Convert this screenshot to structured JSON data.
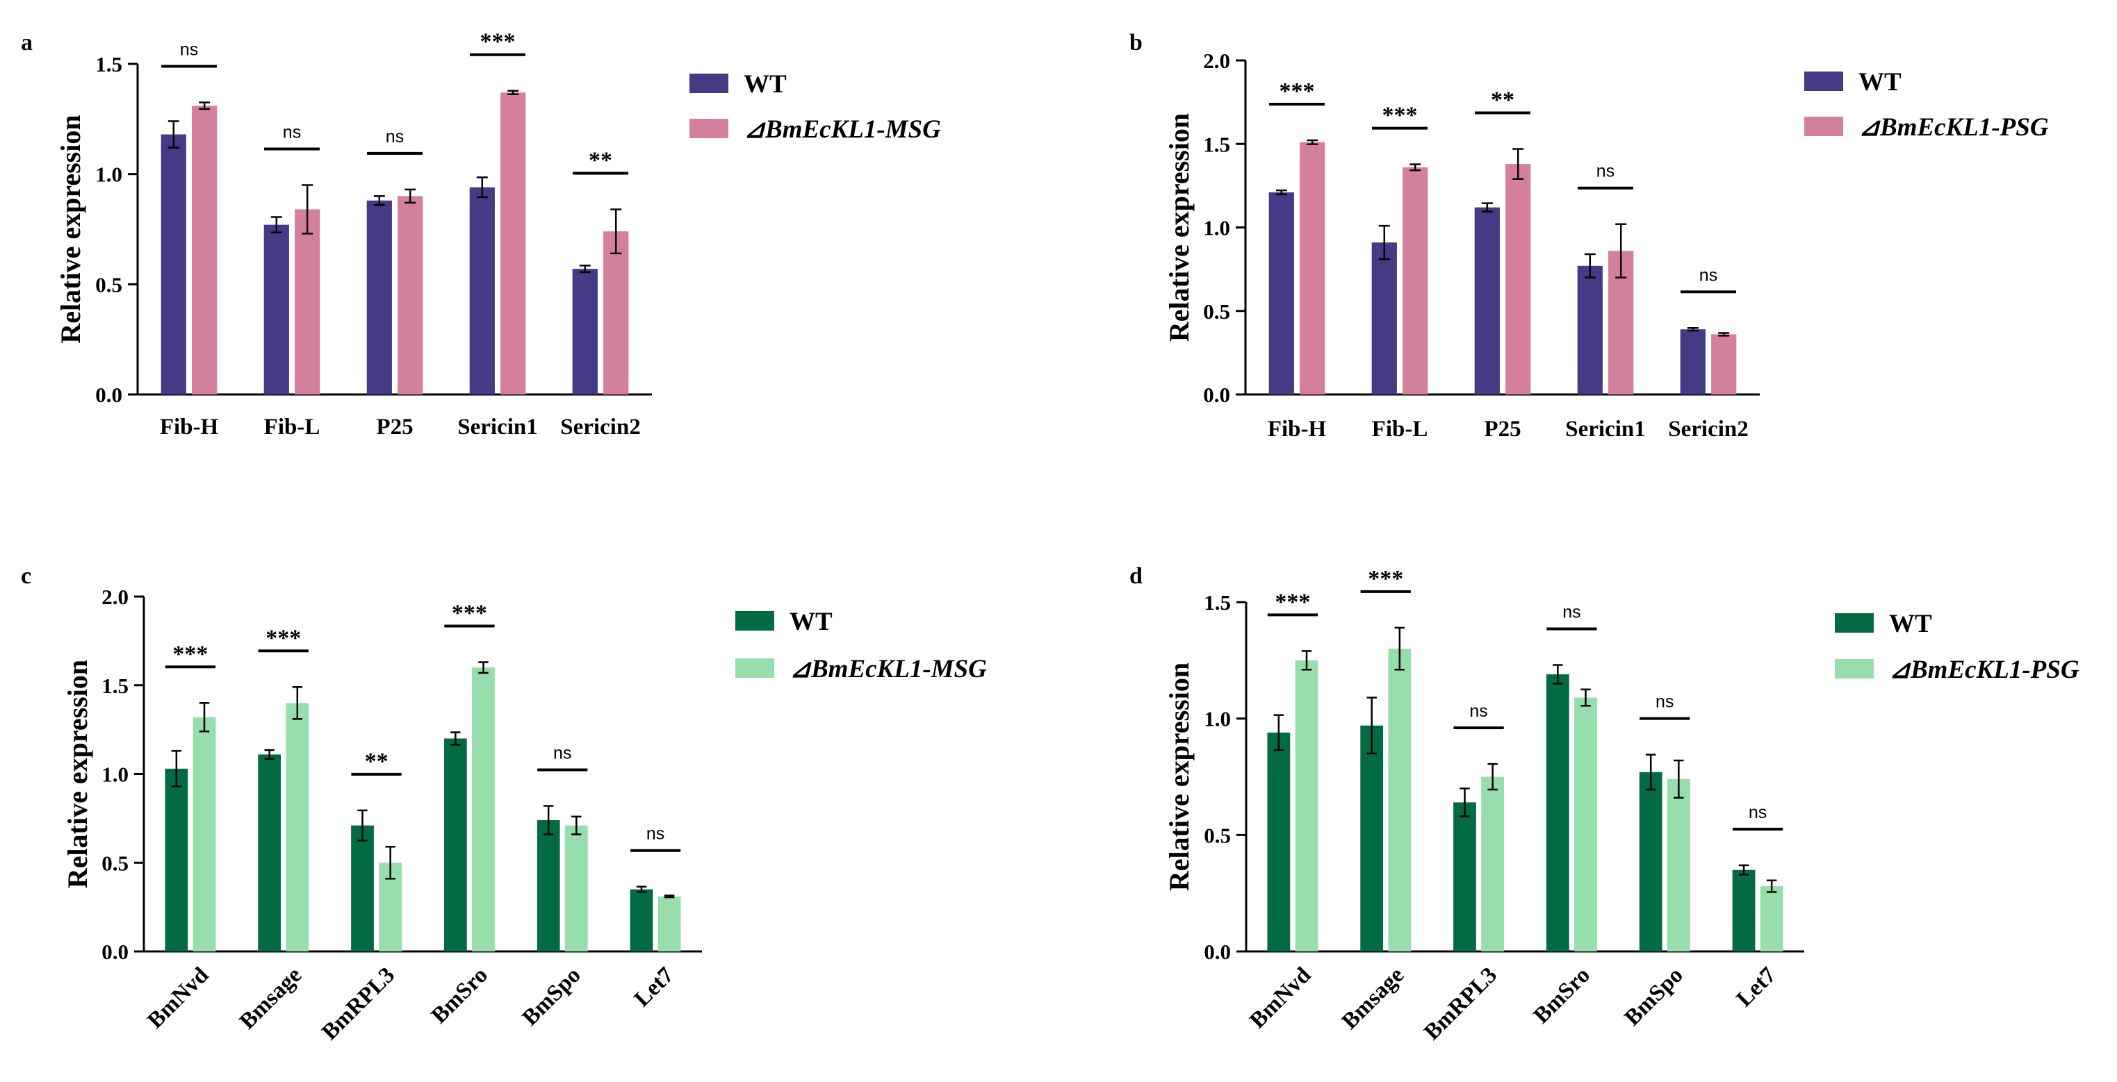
{
  "chart_data": [
    {
      "panel": "a",
      "type": "bar",
      "ylabel": "Relative expression",
      "ylim": [
        0,
        1.5
      ],
      "yticks": [
        "0.0",
        "0.5",
        "1.0",
        "1.5"
      ],
      "categories": [
        "Fib-H",
        "Fib-L",
        "P25",
        "Sericin1",
        "Sericin2"
      ],
      "series": [
        {
          "name": "WT",
          "color": "#453a85",
          "values": [
            1.18,
            0.77,
            0.88,
            0.94,
            0.57
          ],
          "errors": [
            0.06,
            0.035,
            0.02,
            0.045,
            0.015
          ]
        },
        {
          "name": "⊿BmEcKL1-MSG",
          "color": "#d57f9e",
          "values": [
            1.31,
            0.84,
            0.9,
            1.37,
            0.74
          ],
          "errors": [
            0.015,
            0.11,
            0.03,
            0.008,
            0.1
          ]
        }
      ],
      "significance": [
        "ns",
        "ns",
        "ns",
        "***",
        "**"
      ],
      "legend": "right"
    },
    {
      "panel": "b",
      "type": "bar",
      "ylabel": "Relative expression",
      "ylim": [
        0,
        2.0
      ],
      "yticks": [
        "0.0",
        "0.5",
        "1.0",
        "1.5",
        "2.0"
      ],
      "categories": [
        "Fib-H",
        "Fib-L",
        "P25",
        "Sericin1",
        "Sericin2"
      ],
      "series": [
        {
          "name": "WT",
          "color": "#453a85",
          "values": [
            1.21,
            0.91,
            1.12,
            0.77,
            0.39
          ],
          "errors": [
            0.012,
            0.1,
            0.025,
            0.07,
            0.008
          ]
        },
        {
          "name": "⊿BmEcKL1-PSG",
          "color": "#d57f9e",
          "values": [
            1.51,
            1.36,
            1.38,
            0.86,
            0.36
          ],
          "errors": [
            0.012,
            0.018,
            0.09,
            0.16,
            0.008
          ]
        }
      ],
      "significance": [
        "***",
        "***",
        "**",
        "ns",
        "ns"
      ],
      "legend": "right"
    },
    {
      "panel": "c",
      "type": "bar",
      "ylabel": "Relative expression",
      "ylim": [
        0,
        2.0
      ],
      "yticks": [
        "0.0",
        "0.5",
        "1.0",
        "1.5",
        "2.0"
      ],
      "categories": [
        "BmNvd",
        "Bmsage",
        "BmRPL3",
        "BmSro",
        "BmSpo",
        "Let7"
      ],
      "series": [
        {
          "name": "WT",
          "color": "#036b43",
          "values": [
            1.03,
            1.11,
            0.71,
            1.2,
            0.74,
            0.35
          ],
          "errors": [
            0.1,
            0.025,
            0.085,
            0.035,
            0.08,
            0.015
          ]
        },
        {
          "name": "⊿BmEcKL1-MSG",
          "color": "#97deac",
          "values": [
            1.32,
            1.4,
            0.5,
            1.6,
            0.71,
            0.31
          ],
          "errors": [
            0.08,
            0.09,
            0.09,
            0.03,
            0.05,
            0.005
          ]
        }
      ],
      "significance": [
        "***",
        "***",
        "**",
        "***",
        "ns",
        "ns"
      ],
      "legend": "right"
    },
    {
      "panel": "d",
      "type": "bar",
      "ylabel": "Relative expression",
      "ylim": [
        0,
        1.5
      ],
      "yticks": [
        "0.0",
        "0.5",
        "1.0",
        "1.5"
      ],
      "categories": [
        "BmNvd",
        "Bmsage",
        "BmRPL3",
        "BmSro",
        "BmSpo",
        "Let7"
      ],
      "series": [
        {
          "name": "WT",
          "color": "#036b43",
          "values": [
            0.94,
            0.97,
            0.64,
            1.19,
            0.77,
            0.35
          ],
          "errors": [
            0.075,
            0.12,
            0.06,
            0.04,
            0.075,
            0.02
          ]
        },
        {
          "name": "⊿BmEcKL1-PSG",
          "color": "#97deac",
          "values": [
            1.25,
            1.3,
            0.75,
            1.09,
            0.74,
            0.28
          ],
          "errors": [
            0.04,
            0.09,
            0.055,
            0.035,
            0.08,
            0.025
          ]
        }
      ],
      "significance": [
        "***",
        "***",
        "ns",
        "ns",
        "ns",
        "ns"
      ],
      "legend": "right"
    }
  ]
}
